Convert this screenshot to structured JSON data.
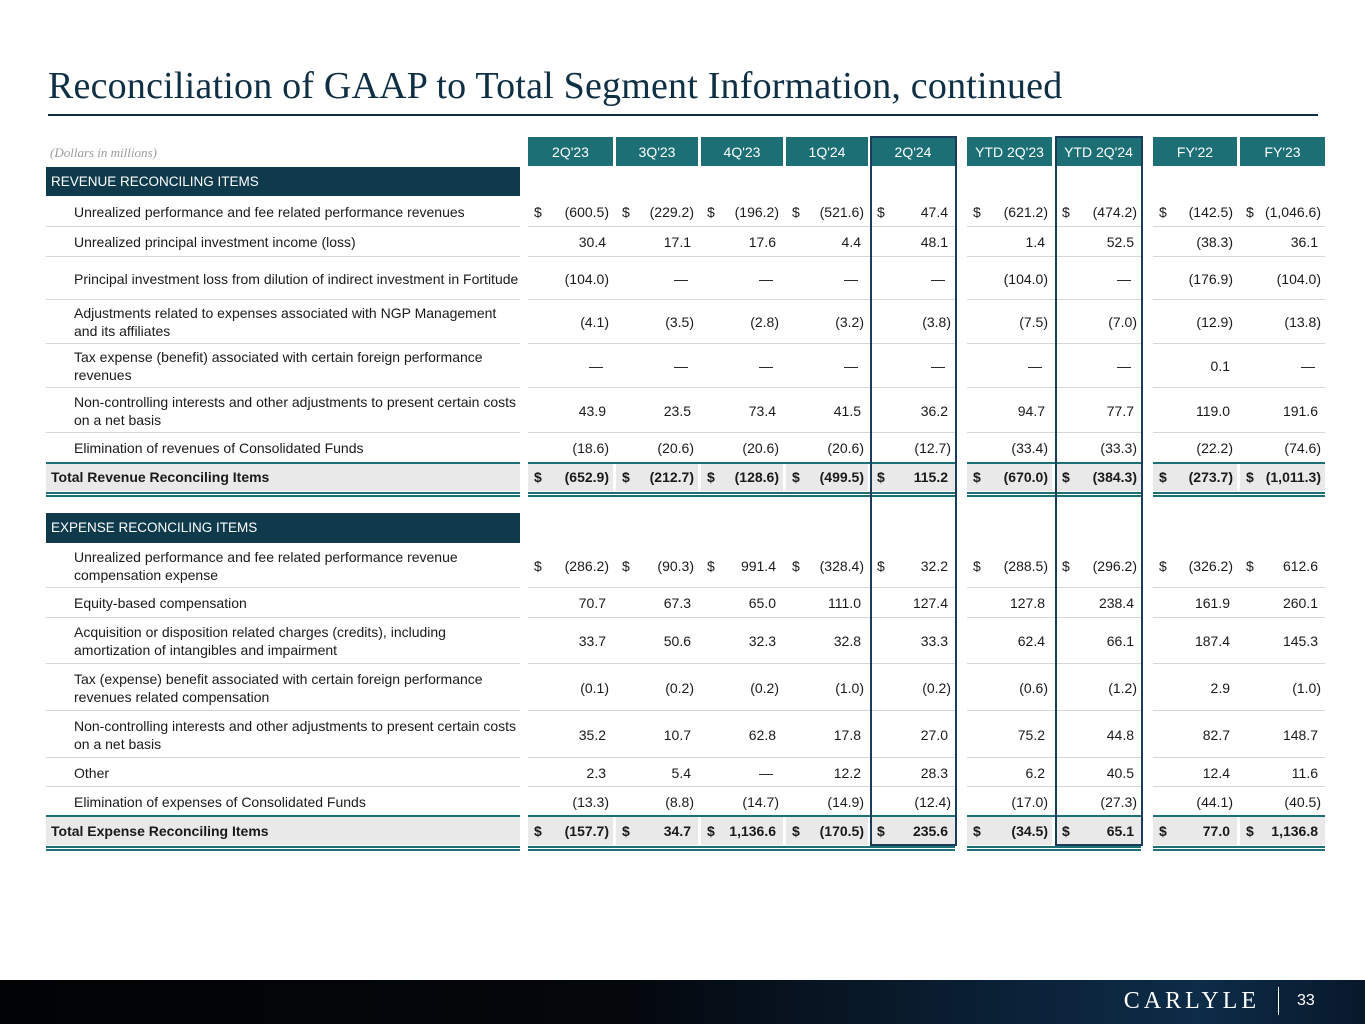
{
  "title": "Reconciliation of GAAP to Total Segment Information, continued",
  "units": "(Dollars in millions)",
  "columns": [
    "2Q'23",
    "3Q'23",
    "4Q'23",
    "1Q'24",
    "2Q'24",
    "YTD 2Q'23",
    "YTD 2Q'24",
    "FY'22",
    "FY'23"
  ],
  "sections": [
    {
      "header": "REVENUE RECONCILING ITEMS",
      "rows": [
        {
          "label": "Unrealized performance and fee related performance revenues",
          "dollar": true,
          "values": [
            "(600.5)",
            "(229.2)",
            "(196.2)",
            "(521.6)",
            "47.4",
            "(621.2)",
            "(474.2)",
            "(142.5)",
            "(1,046.6)"
          ]
        },
        {
          "label": "Unrealized principal investment income (loss)",
          "values": [
            "30.4",
            "17.1",
            "17.6",
            "4.4",
            "48.1",
            "1.4",
            "52.5",
            "(38.3)",
            "36.1"
          ]
        },
        {
          "label": "Principal investment loss from dilution of indirect investment in Fortitude",
          "values": [
            "(104.0)",
            "—",
            "—",
            "—",
            "—",
            "(104.0)",
            "—",
            "(176.9)",
            "(104.0)"
          ]
        },
        {
          "label": "Adjustments related to expenses associated with NGP Management and its affiliates",
          "values": [
            "(4.1)",
            "(3.5)",
            "(2.8)",
            "(3.2)",
            "(3.8)",
            "(7.5)",
            "(7.0)",
            "(12.9)",
            "(13.8)"
          ]
        },
        {
          "label": "Tax expense (benefit) associated with certain foreign performance revenues",
          "values": [
            "—",
            "—",
            "—",
            "—",
            "—",
            "—",
            "—",
            "0.1",
            "—"
          ]
        },
        {
          "label": "Non-controlling interests and other adjustments to present certain costs on a net basis",
          "values": [
            "43.9",
            "23.5",
            "73.4",
            "41.5",
            "36.2",
            "94.7",
            "77.7",
            "119.0",
            "191.6"
          ]
        },
        {
          "label": "Elimination of revenues of Consolidated Funds",
          "values": [
            "(18.6)",
            "(20.6)",
            "(20.6)",
            "(20.6)",
            "(12.7)",
            "(33.4)",
            "(33.3)",
            "(22.2)",
            "(74.6)"
          ]
        }
      ],
      "total": {
        "label": "Total Revenue Reconciling Items",
        "values": [
          "(652.9)",
          "(212.7)",
          "(128.6)",
          "(499.5)",
          "115.2",
          "(670.0)",
          "(384.3)",
          "(273.7)",
          "(1,011.3)"
        ]
      }
    },
    {
      "header": "EXPENSE RECONCILING ITEMS",
      "rows": [
        {
          "label": "Unrealized performance and fee related performance revenue compensation expense",
          "dollar": true,
          "values": [
            "(286.2)",
            "(90.3)",
            "991.4",
            "(328.4)",
            "32.2",
            "(288.5)",
            "(296.2)",
            "(326.2)",
            "612.6"
          ]
        },
        {
          "label": "Equity-based compensation",
          "values": [
            "70.7",
            "67.3",
            "65.0",
            "111.0",
            "127.4",
            "127.8",
            "238.4",
            "161.9",
            "260.1"
          ]
        },
        {
          "label": "Acquisition or disposition related charges (credits), including amortization of intangibles and impairment",
          "values": [
            "33.7",
            "50.6",
            "32.3",
            "32.8",
            "33.3",
            "62.4",
            "66.1",
            "187.4",
            "145.3"
          ]
        },
        {
          "label": "Tax (expense) benefit associated with certain foreign performance revenues related compensation",
          "values": [
            "(0.1)",
            "(0.2)",
            "(0.2)",
            "(1.0)",
            "(0.2)",
            "(0.6)",
            "(1.2)",
            "2.9",
            "(1.0)"
          ]
        },
        {
          "label": "Non-controlling interests and other adjustments to present certain costs on a net basis",
          "values": [
            "35.2",
            "10.7",
            "62.8",
            "17.8",
            "27.0",
            "75.2",
            "44.8",
            "82.7",
            "148.7"
          ]
        },
        {
          "label": "Other",
          "values": [
            "2.3",
            "5.4",
            "—",
            "12.2",
            "28.3",
            "6.2",
            "40.5",
            "12.4",
            "11.6"
          ]
        },
        {
          "label": "Elimination of expenses of Consolidated Funds",
          "values": [
            "(13.3)",
            "(8.8)",
            "(14.7)",
            "(14.9)",
            "(12.4)",
            "(17.0)",
            "(27.3)",
            "(44.1)",
            "(40.5)"
          ]
        }
      ],
      "total": {
        "label": "Total Expense Reconciling Items",
        "values": [
          "(157.7)",
          "34.7",
          "1,136.6",
          "(170.5)",
          "235.6",
          "(34.5)",
          "65.1",
          "77.0",
          "1,136.8"
        ]
      }
    }
  ],
  "footer": {
    "logo": "CARLYLE",
    "page": "33"
  }
}
